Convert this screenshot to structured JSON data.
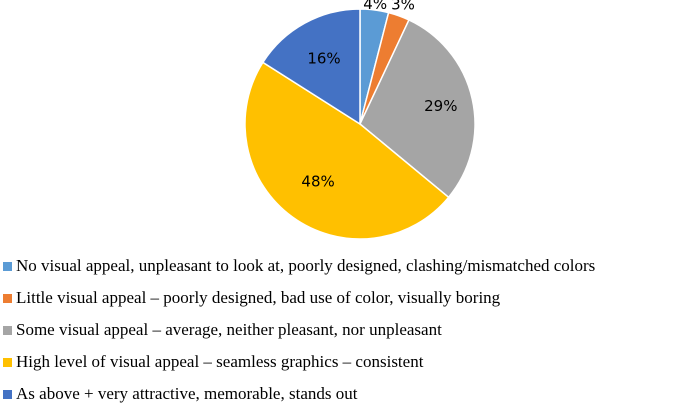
{
  "chart_data": {
    "type": "pie",
    "title": "",
    "slices": [
      {
        "label": "No visual appeal, unpleasant to look at, poorly designed, clashing/mismatched colors",
        "value": 4,
        "display": "4%",
        "color": "#5B9BD5"
      },
      {
        "label": "Little visual appeal – poorly designed, bad use of color, visually boring",
        "value": 3,
        "display": "3%",
        "color": "#ED7D31"
      },
      {
        "label": "Some visual appeal – average, neither pleasant, nor unpleasant",
        "value": 29,
        "display": "29%",
        "color": "#A5A5A5"
      },
      {
        "label": "High level of visual appeal – seamless graphics – consistent",
        "value": 48,
        "display": "48%",
        "color": "#FFC000"
      },
      {
        "label": "As above + very attractive, memorable, stands out",
        "value": 16,
        "display": "16%",
        "color": "#4472C4"
      }
    ],
    "legend_position": "bottom",
    "start_angle": "top",
    "direction": "clockwise"
  }
}
